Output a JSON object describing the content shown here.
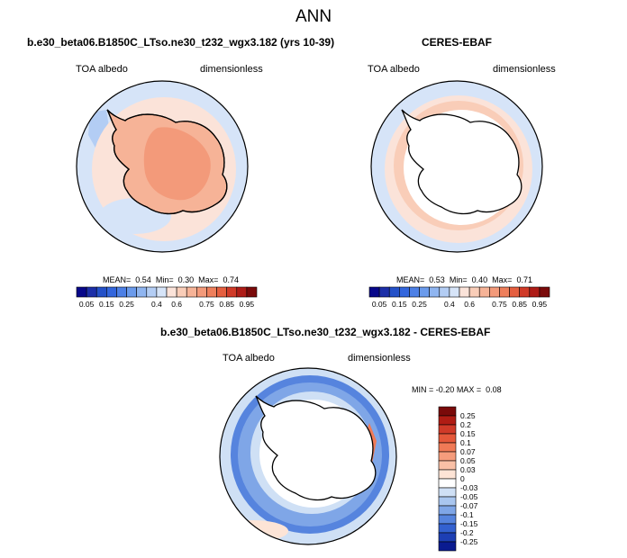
{
  "page": {
    "title": "ANN"
  },
  "chart_data": [
    {
      "type": "heatmap",
      "title": "b.e30_beta06.B1850C_LTso.ne30_t232_wgx3.182 (yrs 10-39)",
      "variable": "TOA albedo",
      "units": "dimensionless",
      "projection": "south polar stereographic",
      "stats": {
        "mean_label": "MEAN=",
        "mean": "0.54",
        "min_label": "Min=",
        "min": "0.30",
        "max_label": "Max=",
        "max": "0.74"
      },
      "colorbar": {
        "levels": [
          "0.05",
          "0.1",
          "0.15",
          "0.2",
          "0.25",
          "0.3",
          "0.35",
          "0.4",
          "0.5",
          "0.6",
          "0.65",
          "0.7",
          "0.75",
          "0.8",
          "0.85",
          "0.9",
          "0.95"
        ],
        "tick_labels": [
          "0.05",
          "0.15",
          "0.25",
          "0.4",
          "0.6",
          "0.75",
          "0.85",
          "0.95"
        ],
        "colors": [
          "#08088a",
          "#1c2fa8",
          "#2451c8",
          "#3366dd",
          "#4d80e6",
          "#6b9bec",
          "#8fb5f0",
          "#b3cdf4",
          "#d6e4f8",
          "#fbe3d9",
          "#f9cdb8",
          "#f6b397",
          "#f39a7a",
          "#ee7f5c",
          "#e55f40",
          "#d03a28",
          "#ae1c17",
          "#7a0a0a"
        ]
      },
      "regions": [
        {
          "name": "ocean",
          "value": 0.42
        },
        {
          "name": "sea-ice-ring",
          "value": 0.62
        },
        {
          "name": "antarctica",
          "value": 0.72
        }
      ]
    },
    {
      "type": "heatmap",
      "title": "CERES-EBAF",
      "variable": "TOA albedo",
      "units": "dimensionless",
      "projection": "south polar stereographic",
      "stats": {
        "mean_label": "MEAN=",
        "mean": "0.53",
        "min_label": "Min=",
        "min": "0.40",
        "max_label": "Max=",
        "max": "0.71"
      },
      "colorbar": {
        "levels": [
          "0.05",
          "0.1",
          "0.15",
          "0.2",
          "0.25",
          "0.3",
          "0.35",
          "0.4",
          "0.5",
          "0.6",
          "0.65",
          "0.7",
          "0.75",
          "0.8",
          "0.85",
          "0.9",
          "0.95"
        ],
        "tick_labels": [
          "0.05",
          "0.15",
          "0.25",
          "0.4",
          "0.6",
          "0.75",
          "0.85",
          "0.95"
        ],
        "colors": [
          "#08088a",
          "#1c2fa8",
          "#2451c8",
          "#3366dd",
          "#4d80e6",
          "#6b9bec",
          "#8fb5f0",
          "#b3cdf4",
          "#d6e4f8",
          "#fbe3d9",
          "#f9cdb8",
          "#f6b397",
          "#f39a7a",
          "#ee7f5c",
          "#e55f40",
          "#d03a28",
          "#ae1c17",
          "#7a0a0a"
        ]
      },
      "regions": [
        {
          "name": "ocean",
          "value": 0.42
        },
        {
          "name": "sea-ice-ring",
          "value": 0.64
        },
        {
          "name": "antarctica",
          "value": null
        }
      ]
    },
    {
      "type": "heatmap",
      "title": "b.e30_beta06.B1850C_LTso.ne30_t232_wgx3.182 - CERES-EBAF",
      "variable": "TOA albedo",
      "units": "dimensionless",
      "projection": "south polar stereographic",
      "stats": {
        "min_label": "MIN =",
        "min": "-0.20",
        "max_label": "MAX =",
        "max": "0.08"
      },
      "colorbar": {
        "orientation": "vertical",
        "tick_labels": [
          "0.25",
          "0.2",
          "0.15",
          "0.1",
          "0.07",
          "0.05",
          "0.03",
          "0",
          "-0.03",
          "-0.05",
          "-0.07",
          "-0.1",
          "-0.15",
          "-0.2",
          "-0.25"
        ],
        "colors": [
          "#7a0a0a",
          "#b01c14",
          "#d03a28",
          "#e5583a",
          "#f07a56",
          "#f59c7c",
          "#f9c0a6",
          "#fde4d6",
          "#ffffff",
          "#cfe0f5",
          "#a9c6ef",
          "#7fa6e7",
          "#5684de",
          "#3361d0",
          "#1d3fb4",
          "#0a1b90"
        ]
      },
      "regions": [
        {
          "name": "outer-ocean",
          "value": -0.03
        },
        {
          "name": "ice-edge-band",
          "value": -0.12
        },
        {
          "name": "near-coast-ring",
          "value": -0.03
        },
        {
          "name": "coastal-positive",
          "value": 0.05
        }
      ]
    }
  ]
}
